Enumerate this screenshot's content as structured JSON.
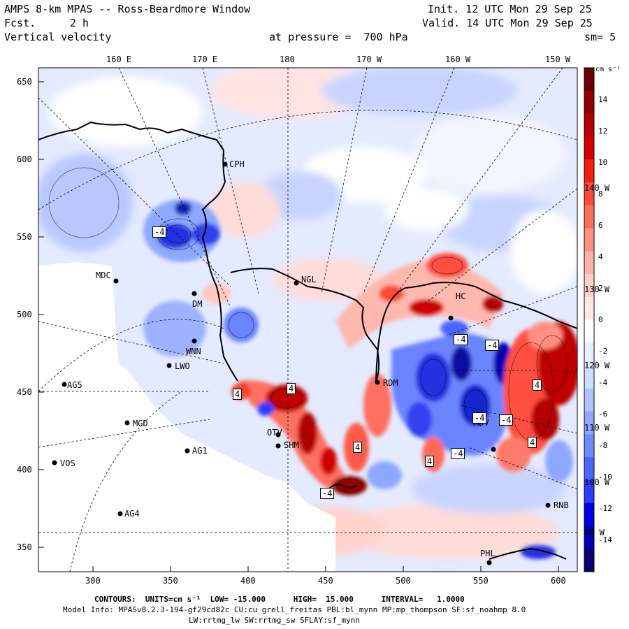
{
  "header": {
    "title": "AMPS 8-km MPAS -- Ross-Beardmore Window",
    "fcst_label": "Fcst.",
    "fcst_value": "2 h",
    "field": "Vertical velocity",
    "pressure": "at pressure =  700 hPa",
    "init": "Init. 12 UTC Mon 29 Sep 25",
    "valid": "Valid. 14 UTC Mon 29 Sep 25",
    "smooth": "sm= 5"
  },
  "map": {
    "lon_top_labels": [
      "160 E",
      "170 E",
      "180",
      "170 W",
      "160 W",
      "150 W"
    ],
    "lon_right_labels": [
      "140 W",
      "130 W",
      "120 W",
      "110 W",
      "100 W",
      "90 W"
    ],
    "y_ticks": [
      "650",
      "600",
      "550",
      "500",
      "450",
      "400",
      "350"
    ],
    "x_ticks": [
      "300",
      "350",
      "400",
      "450",
      "500",
      "550",
      "600"
    ],
    "stations": [
      "CPH",
      "MDC",
      "NGL",
      "DM",
      "WNN",
      "LWO",
      "AG5",
      "MGD",
      "AG1",
      "VOS",
      "AG4",
      "OTV",
      "SHM",
      "MDV",
      "RDM",
      "PHL",
      "RNB",
      "HC"
    ],
    "contour_labels": [
      "-4",
      "4",
      "-4",
      "4",
      "-4",
      "-4",
      "4",
      "-4",
      "4",
      "4",
      "-4",
      "4",
      "-4"
    ]
  },
  "colorbar": {
    "units": "cm s⁻¹",
    "labels": [
      "14",
      "12",
      "10",
      "8",
      "6",
      "4",
      "2",
      "0",
      "-2",
      "-4",
      "-6",
      "-8",
      "-10",
      "-12",
      "-14"
    ],
    "colors": [
      "#0a0070",
      "#0000b4",
      "#0000e6",
      "#2a3cff",
      "#4a66ff",
      "#6e8cff",
      "#90a8ff",
      "#b2c2ff",
      "#d0dcff",
      "#e8eeff",
      "#ffffff",
      "#ffe8e6",
      "#ffcfca",
      "#ffb2a8",
      "#ff9082",
      "#ff6e5c",
      "#ff4a36",
      "#f02010",
      "#d40000",
      "#b40000",
      "#900000",
      "#6a0000"
    ],
    "color_count": 30
  },
  "footer": {
    "contours": "CONTOURS:  UNITS=cm s⁻¹  LOW= -15.000      HIGH=  15.000      INTERVAL=   1.0000",
    "model_info": "Model Info: MPASv8.2.3-194-gf29cd82c CU:cu_grell_freitas PBL:bl_mynn MP:mp_thompson SF:sf_noahmp 8.0",
    "model_info2": "LW:rrtmg_lw SW:rrtmg_sw SFLAY:sf_mynn"
  },
  "colors": {
    "blue_light": "#c8d4ff",
    "blue_pale": "#e2e8ff",
    "blue_mid": "#8ea8ff",
    "blue_deep": "#2030e0",
    "red_light": "#ffc8c0",
    "red_mid": "#ff8070",
    "red_deep": "#c00000"
  }
}
